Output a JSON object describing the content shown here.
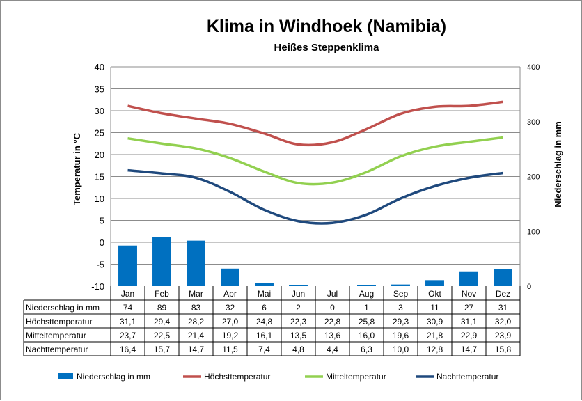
{
  "chart_data": {
    "type": "bar+line",
    "title": "Klima in Windhoek (Namibia)",
    "subtitle": "Heißes Steppenklima",
    "ylabel": "Temperatur in °C",
    "y2label": "Niederschlag in mm",
    "ylim": [
      -10,
      40
    ],
    "y_ticks": [
      40,
      35,
      30,
      25,
      20,
      15,
      10,
      5,
      0,
      -5,
      -10
    ],
    "y2lim": [
      0,
      400
    ],
    "y2_ticks": [
      400,
      300,
      200,
      100,
      0
    ],
    "grid": true,
    "legend_position": "bottom",
    "categories": [
      "Jan",
      "Feb",
      "Mar",
      "Apr",
      "Mai",
      "Jun",
      "Jul",
      "Aug",
      "Sep",
      "Okt",
      "Nov",
      "Dez"
    ],
    "series": [
      {
        "name": "Niederschlag in mm",
        "kind": "bar",
        "axis": "right",
        "color": "#0070c0",
        "values": [
          74,
          89,
          83,
          32,
          6,
          2,
          0,
          1,
          3,
          11,
          27,
          31
        ],
        "labels": [
          "74",
          "89",
          "83",
          "32",
          "6",
          "2",
          "0",
          "1",
          "3",
          "11",
          "27",
          "31"
        ]
      },
      {
        "name": "Höchsttemperatur",
        "kind": "line",
        "axis": "left",
        "color": "#c0504d",
        "values": [
          31.1,
          29.4,
          28.2,
          27.0,
          24.8,
          22.3,
          22.8,
          25.8,
          29.3,
          30.9,
          31.1,
          32.0
        ],
        "labels": [
          "31,1",
          "29,4",
          "28,2",
          "27,0",
          "24,8",
          "22,3",
          "22,8",
          "25,8",
          "29,3",
          "30,9",
          "31,1",
          "32,0"
        ]
      },
      {
        "name": "Mitteltemperatur",
        "kind": "line",
        "axis": "left",
        "color": "#92d050",
        "values": [
          23.7,
          22.5,
          21.4,
          19.2,
          16.1,
          13.5,
          13.6,
          16.0,
          19.6,
          21.8,
          22.9,
          23.9
        ],
        "labels": [
          "23,7",
          "22,5",
          "21,4",
          "19,2",
          "16,1",
          "13,5",
          "13,6",
          "16,0",
          "19,6",
          "21,8",
          "22,9",
          "23,9"
        ]
      },
      {
        "name": "Nachttemperatur",
        "kind": "line",
        "axis": "left",
        "color": "#1f497d",
        "values": [
          16.4,
          15.7,
          14.7,
          11.5,
          7.4,
          4.8,
          4.4,
          6.3,
          10.0,
          12.8,
          14.7,
          15.8
        ],
        "labels": [
          "16,4",
          "15,7",
          "14,7",
          "11,5",
          "7,4",
          "4,8",
          "4,4",
          "6,3",
          "10,0",
          "12,8",
          "14,7",
          "15,8"
        ]
      }
    ]
  }
}
